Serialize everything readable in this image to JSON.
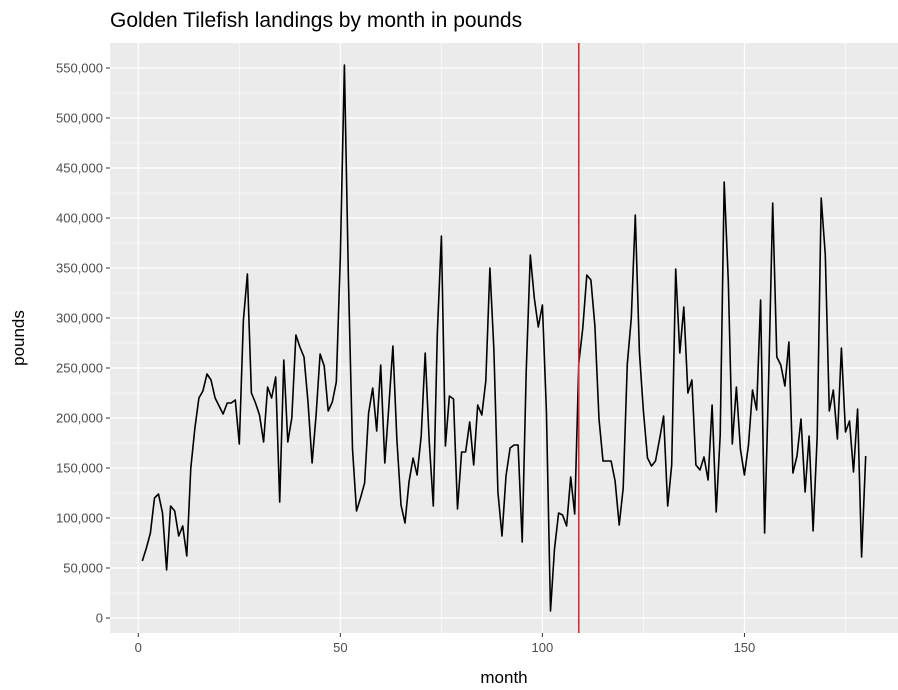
{
  "chart_data": {
    "type": "line",
    "title": "Golden Tilefish landings by month in pounds",
    "xlabel": "month",
    "ylabel": "pounds",
    "xlim": [
      -7,
      188
    ],
    "ylim": [
      -15000,
      575000
    ],
    "x_ticks": [
      0,
      50,
      100,
      150
    ],
    "y_ticks": [
      0,
      50000,
      100000,
      150000,
      200000,
      250000,
      300000,
      350000,
      400000,
      450000,
      500000,
      550000
    ],
    "x_tick_labels": [
      "0",
      "50",
      "100",
      "150"
    ],
    "y_tick_labels": [
      "0",
      "50,000",
      "100,000",
      "150,000",
      "200,000",
      "250,000",
      "300,000",
      "350,000",
      "400,000",
      "450,000",
      "500,000",
      "550,000"
    ],
    "grid": true,
    "legend": "none",
    "colors": {
      "panel": "#ebebeb",
      "grid": "#ffffff",
      "line": "#000000",
      "vline": "#c0392b"
    },
    "vline": {
      "x": 109
    },
    "series": [
      {
        "x": [
          1,
          2,
          3,
          4,
          5,
          6,
          7,
          8,
          9,
          10,
          11,
          12,
          13,
          14,
          15,
          16,
          17,
          18,
          19,
          20,
          21,
          22,
          23,
          24,
          25,
          26,
          27,
          28,
          29,
          30,
          31,
          32,
          33,
          34,
          35,
          36,
          37,
          38,
          39,
          40,
          41,
          42,
          43,
          44,
          45,
          46,
          47,
          48,
          49,
          50,
          51,
          52,
          53,
          54,
          55,
          56,
          57,
          58,
          59,
          60,
          61,
          62,
          63,
          64,
          65,
          66,
          67,
          68,
          69,
          70,
          71,
          72,
          73,
          74,
          75,
          76,
          77,
          78,
          79,
          80,
          81,
          82,
          83,
          84,
          85,
          86,
          87,
          88,
          89,
          90,
          91,
          92,
          93,
          94,
          95,
          96,
          97,
          98,
          99,
          100,
          101,
          102,
          103,
          104,
          105,
          106,
          107,
          108,
          109,
          110,
          111,
          112,
          113,
          114,
          115,
          116,
          117,
          118,
          119,
          120,
          121,
          122,
          123,
          124,
          125,
          126,
          127,
          128,
          129,
          130,
          131,
          132,
          133,
          134,
          135,
          136,
          137,
          138,
          139,
          140,
          141,
          142,
          143,
          144,
          145,
          146,
          147,
          148,
          149,
          150,
          151,
          152,
          153,
          154,
          155,
          156,
          157,
          158,
          159,
          160,
          161,
          162,
          163,
          164,
          165,
          166,
          167,
          168,
          169,
          170,
          171,
          172,
          173,
          174,
          175,
          176,
          177,
          178,
          179,
          180
        ],
        "y": [
          57000,
          70000,
          85000,
          120000,
          124000,
          105000,
          48000,
          112000,
          107000,
          82000,
          92000,
          62000,
          150000,
          190000,
          220000,
          227000,
          244000,
          238000,
          220000,
          212000,
          204000,
          215000,
          215000,
          218000,
          174000,
          298000,
          344000,
          225000,
          215000,
          203000,
          176000,
          231000,
          220000,
          241000,
          116000,
          258000,
          176000,
          200000,
          283000,
          271000,
          261000,
          216000,
          155000,
          203000,
          264000,
          252000,
          207000,
          216000,
          236000,
          360000,
          553000,
          340000,
          169000,
          107000,
          120000,
          135000,
          205000,
          230000,
          187000,
          253000,
          155000,
          211000,
          272000,
          178000,
          113000,
          95000,
          136000,
          160000,
          143000,
          182000,
          265000,
          177000,
          112000,
          284000,
          382000,
          172000,
          222000,
          219000,
          109000,
          166000,
          166000,
          196000,
          153000,
          213000,
          203000,
          237000,
          350000,
          268000,
          126000,
          82000,
          142000,
          170000,
          173000,
          173000,
          76000,
          246000,
          363000,
          320000,
          291000,
          313000,
          207000,
          7000,
          69000,
          105000,
          103000,
          92000,
          141000,
          104000,
          255000,
          290000,
          343000,
          338000,
          292000,
          199000,
          157000,
          157000,
          157000,
          137000,
          93000,
          130000,
          254000,
          300000,
          403000,
          266000,
          207000,
          160000,
          152000,
          157000,
          179000,
          202000,
          112000,
          153000,
          349000,
          265000,
          311000,
          225000,
          238000,
          153000,
          148000,
          161000,
          138000,
          213000,
          106000,
          183000,
          436000,
          337000,
          174000,
          231000,
          169000,
          143000,
          173000,
          228000,
          208000,
          318000,
          85000,
          240000,
          415000,
          261000,
          253000,
          232000,
          276000,
          145000,
          162000,
          199000,
          126000,
          182000,
          87000,
          182000,
          420000,
          363000,
          207000,
          228000,
          179000,
          270000,
          186000,
          197000,
          146000,
          209000,
          61000,
          162000
        ]
      }
    ]
  }
}
